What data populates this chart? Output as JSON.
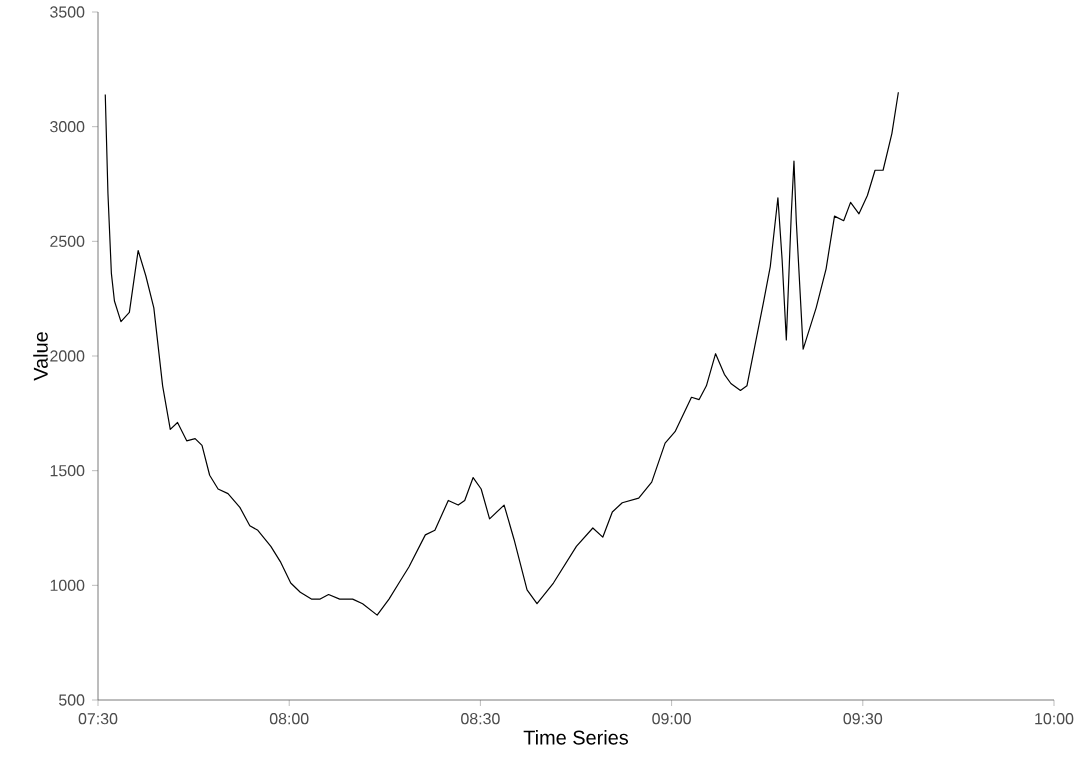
{
  "chart_data": {
    "type": "line",
    "xlabel": "Time Series",
    "ylabel": "Value",
    "color": "#000000",
    "x": [
      7.519,
      7.526,
      7.535,
      7.543,
      7.56,
      7.582,
      7.605,
      7.625,
      7.646,
      7.669,
      7.689,
      7.708,
      7.732,
      7.754,
      7.772,
      7.792,
      7.814,
      7.84,
      7.871,
      7.897,
      7.918,
      7.952,
      7.978,
      8.004,
      8.029,
      8.058,
      8.081,
      8.103,
      8.132,
      8.166,
      8.192,
      8.23,
      8.261,
      8.287,
      8.313,
      8.356,
      8.381,
      8.416,
      8.442,
      8.459,
      8.481,
      8.502,
      8.524,
      8.562,
      8.588,
      8.622,
      8.648,
      8.691,
      8.751,
      8.794,
      8.82,
      8.845,
      8.871,
      8.914,
      8.948,
      8.983,
      9.009,
      9.052,
      9.072,
      9.091,
      9.115,
      9.138,
      9.155,
      9.18,
      9.197,
      9.241,
      9.258,
      9.278,
      9.289,
      9.3,
      9.313,
      9.32,
      9.326,
      9.344,
      9.378,
      9.404,
      9.426,
      9.45,
      9.468,
      9.49,
      9.512,
      9.532,
      9.553,
      9.576,
      9.593
    ],
    "values": [
      3140,
      2710,
      2360,
      2240,
      2150,
      2190,
      2460,
      2350,
      2210,
      1870,
      1680,
      1710,
      1630,
      1640,
      1610,
      1480,
      1420,
      1400,
      1340,
      1260,
      1240,
      1170,
      1100,
      1010,
      970,
      940,
      940,
      960,
      940,
      940,
      920,
      870,
      940,
      1010,
      1080,
      1220,
      1240,
      1370,
      1350,
      1370,
      1470,
      1420,
      1290,
      1350,
      1200,
      980,
      920,
      1010,
      1170,
      1250,
      1210,
      1320,
      1360,
      1380,
      1450,
      1620,
      1670,
      1820,
      1810,
      1870,
      2010,
      1920,
      1880,
      1850,
      1870,
      2240,
      2390,
      2690,
      2420,
      2070,
      2620,
      2850,
      2590,
      2030,
      2210,
      2380,
      2610,
      2590,
      2670,
      2620,
      2700,
      2810,
      2810,
      2970,
      3150
    ],
    "xlim": [
      7.5,
      10
    ],
    "xticks": [
      {
        "value": 7.5,
        "label": "07:30"
      },
      {
        "value": 8,
        "label": "08:00"
      },
      {
        "value": 8.5,
        "label": "08:30"
      },
      {
        "value": 9,
        "label": "09:00"
      },
      {
        "value": 9.5,
        "label": "09:30"
      },
      {
        "value": 10,
        "label": "10:00"
      }
    ],
    "ylim": [
      500,
      3500
    ],
    "yticks": [
      500,
      1000,
      1500,
      2000,
      2500,
      3000,
      3500
    ],
    "grid": false,
    "marker": "none",
    "line_style": "solid"
  }
}
